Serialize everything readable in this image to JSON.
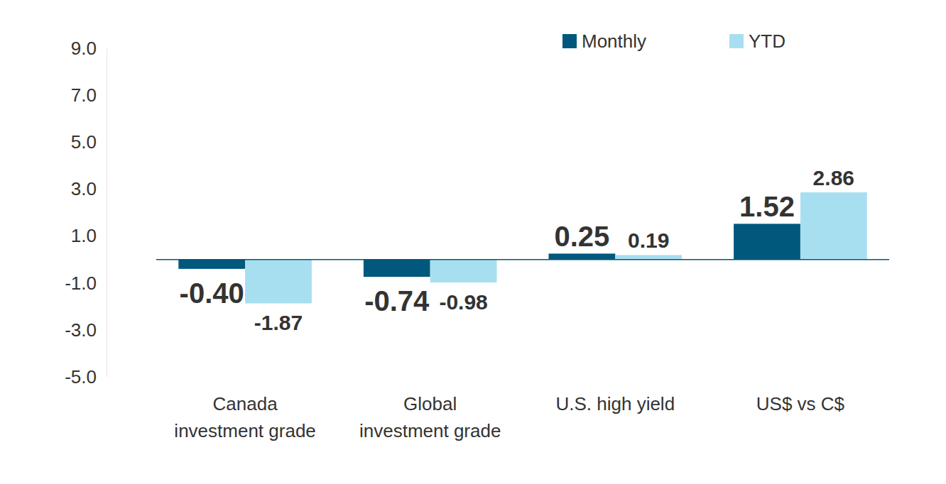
{
  "chart_data": {
    "type": "bar",
    "categories": [
      "Canada investment grade",
      "Global investment grade",
      "U.S. high yield",
      "US$ vs C$"
    ],
    "series": [
      {
        "name": "Monthly",
        "color": "#00587c",
        "values": [
          -0.4,
          -0.74,
          0.25,
          1.52
        ],
        "value_labels": [
          "-0.40",
          "-0.74",
          "0.25",
          "1.52"
        ]
      },
      {
        "name": "YTD",
        "color": "#a8dff0",
        "values": [
          -1.87,
          -0.98,
          0.19,
          2.86
        ],
        "value_labels": [
          "-1.87",
          "-0.98",
          "0.19",
          "2.86"
        ]
      }
    ],
    "ylim": [
      -5,
      9
    ],
    "yticks": [
      {
        "value": -5,
        "label": "-5.0"
      },
      {
        "value": -3,
        "label": "-3.0"
      },
      {
        "value": -1,
        "label": "-1.0"
      },
      {
        "value": 1,
        "label": "1.0"
      },
      {
        "value": 3,
        "label": "3.0"
      },
      {
        "value": 5,
        "label": "5.0"
      },
      {
        "value": 7,
        "label": "7.0"
      },
      {
        "value": 9,
        "label": "9.0"
      }
    ],
    "grid": false,
    "legend": "top-right",
    "data_labels": true
  }
}
